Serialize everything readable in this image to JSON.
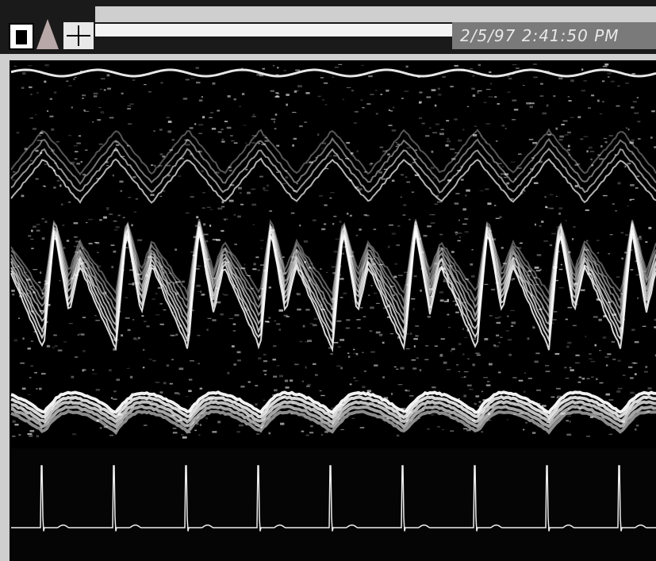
{
  "header": {
    "timestamp": "2/5/97 2:41:50 PM"
  }
}
